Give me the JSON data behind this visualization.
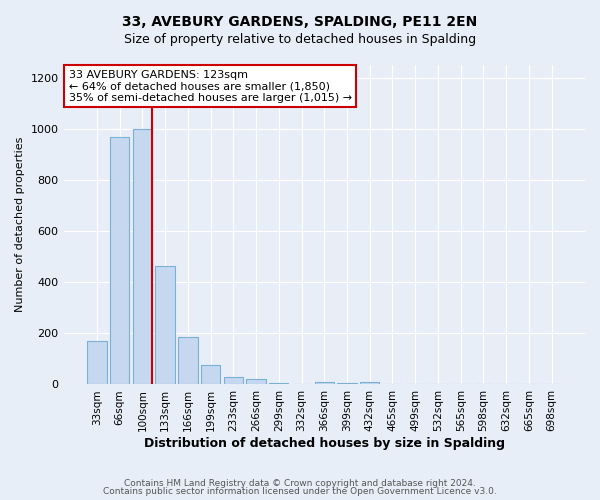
{
  "title": "33, AVEBURY GARDENS, SPALDING, PE11 2EN",
  "subtitle": "Size of property relative to detached houses in Spalding",
  "xlabel": "Distribution of detached houses by size in Spalding",
  "ylabel": "Number of detached properties",
  "bar_labels": [
    "33sqm",
    "66sqm",
    "100sqm",
    "133sqm",
    "166sqm",
    "199sqm",
    "233sqm",
    "266sqm",
    "299sqm",
    "332sqm",
    "366sqm",
    "399sqm",
    "432sqm",
    "465sqm",
    "499sqm",
    "532sqm",
    "565sqm",
    "598sqm",
    "632sqm",
    "665sqm",
    "698sqm"
  ],
  "bar_values": [
    170,
    970,
    1000,
    465,
    185,
    75,
    30,
    20,
    5,
    0,
    10,
    5,
    10,
    0,
    0,
    0,
    0,
    0,
    0,
    0,
    0
  ],
  "bar_color": "#c5d8f0",
  "bar_edge_color": "#7bafd4",
  "red_line_color": "#cc0000",
  "annotation_line1": "33 AVEBURY GARDENS: 123sqm",
  "annotation_line2": "← 64% of detached houses are smaller (1,850)",
  "annotation_line3": "35% of semi-detached houses are larger (1,015) →",
  "annotation_box_color": "#ffffff",
  "annotation_box_edge_color": "#cc0000",
  "ylim": [
    0,
    1250
  ],
  "yticks": [
    0,
    200,
    400,
    600,
    800,
    1000,
    1200
  ],
  "footer_line1": "Contains HM Land Registry data © Crown copyright and database right 2024.",
  "footer_line2": "Contains public sector information licensed under the Open Government Licence v3.0.",
  "background_color": "#e8eef8",
  "plot_background_color": "#e8eef8",
  "grid_color": "#ffffff",
  "title_fontsize": 10,
  "subtitle_fontsize": 9,
  "ylabel_fontsize": 8,
  "xlabel_fontsize": 9,
  "tick_fontsize": 8,
  "xtick_fontsize": 7.5,
  "footer_fontsize": 6.5,
  "annotation_fontsize": 8
}
